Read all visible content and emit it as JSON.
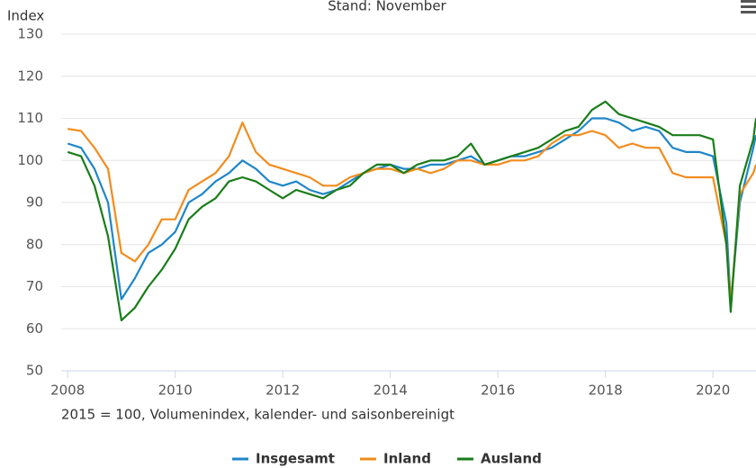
{
  "chart_data": {
    "type": "line",
    "title": "Stand: November",
    "y_axis_label": "Index",
    "note": "2015 = 100, Volumenindex, kalender- und saisonbereinigt",
    "x": [
      2008,
      2008.25,
      2008.5,
      2008.75,
      2009,
      2009.25,
      2009.5,
      2009.75,
      2010,
      2010.25,
      2010.5,
      2010.75,
      2011,
      2011.25,
      2011.5,
      2011.75,
      2012,
      2012.25,
      2012.5,
      2012.75,
      2013,
      2013.25,
      2013.5,
      2013.75,
      2014,
      2014.25,
      2014.5,
      2014.75,
      2015,
      2015.25,
      2015.5,
      2015.75,
      2016,
      2016.25,
      2016.5,
      2016.75,
      2017,
      2017.25,
      2017.5,
      2017.75,
      2018,
      2018.25,
      2018.5,
      2018.75,
      2019,
      2019.25,
      2019.5,
      2019.75,
      2020,
      2020.25,
      2020.33,
      2020.5,
      2020.75,
      2020.8
    ],
    "series": [
      {
        "name": "Insgesamt",
        "color": "#1f86c8",
        "values": [
          104,
          103,
          98,
          90,
          67,
          72,
          78,
          80,
          83,
          90,
          92,
          95,
          97,
          100,
          98,
          95,
          94,
          95,
          93,
          92,
          93,
          95,
          97,
          98,
          99,
          98,
          98,
          99,
          99,
          100,
          101,
          99,
          100,
          101,
          101,
          102,
          103,
          105,
          107,
          110,
          110,
          109,
          107,
          108,
          107,
          103,
          102,
          102,
          101,
          85,
          66,
          90,
          103,
          106
        ]
      },
      {
        "name": "Inland",
        "color": "#f28c1e",
        "values": [
          107.5,
          107,
          103,
          98,
          78,
          76,
          80,
          86,
          86,
          93,
          95,
          97,
          101,
          109,
          102,
          99,
          98,
          97,
          96,
          94,
          94,
          96,
          97,
          98,
          98,
          97,
          98,
          97,
          98,
          100,
          100,
          99,
          99,
          100,
          100,
          101,
          104,
          106,
          106,
          107,
          106,
          103,
          104,
          103,
          103,
          97,
          96,
          96,
          96,
          80,
          66,
          92,
          97,
          99
        ]
      },
      {
        "name": "Ausland",
        "color": "#1a7d1a",
        "values": [
          102,
          101,
          94,
          82,
          62,
          65,
          70,
          74,
          79,
          86,
          89,
          91,
          95,
          96,
          95,
          93,
          91,
          93,
          92,
          91,
          93,
          94,
          97,
          99,
          99,
          97,
          99,
          100,
          100,
          101,
          104,
          99,
          100,
          101,
          102,
          103,
          105,
          107,
          108,
          112,
          114,
          111,
          110,
          109,
          108,
          106,
          106,
          106,
          105,
          80,
          64,
          94,
          105,
          110
        ]
      }
    ],
    "xlim": [
      2007.88,
      2020.8
    ],
    "xticks": [
      2008,
      2010,
      2012,
      2014,
      2016,
      2018,
      2020
    ],
    "ylim": [
      50,
      130
    ],
    "yticks": [
      50,
      60,
      70,
      80,
      90,
      100,
      110,
      120,
      130
    ],
    "grid": true
  }
}
